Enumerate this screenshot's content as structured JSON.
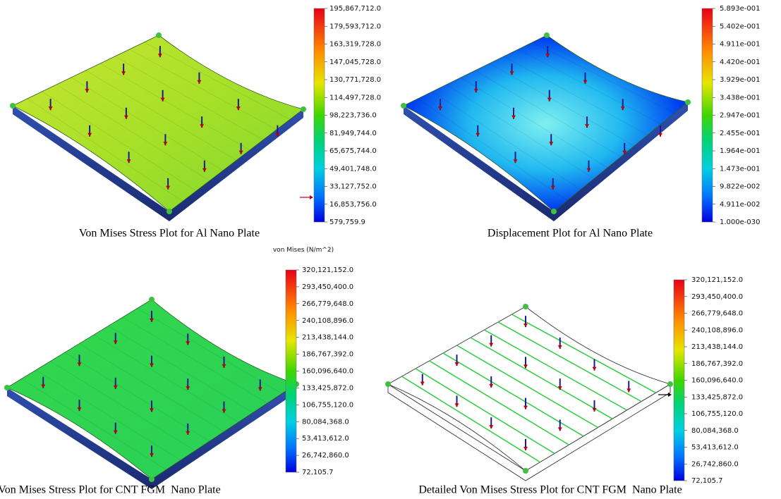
{
  "panels": [
    {
      "caption": "Von Mises Stress Plot for Al Nano Plate",
      "colorbar": [
        "195,867,712.0",
        "179,593,712.0",
        "163,319,728.0",
        "147,045,728.0",
        "130,771,728.0",
        "114,497,728.0",
        "98,223,736.0",
        "81,949,744.0",
        "65,675,744.0",
        "49,401,748.0",
        "33,127,752.0",
        "16,853,756.0",
        "579,759.9"
      ]
    },
    {
      "caption": "Displacement Plot for Al Nano Plate",
      "colorbar": [
        "5.893e-001",
        "5.402e-001",
        "4.911e-001",
        "4.420e-001",
        "3.929e-001",
        "3.438e-001",
        "2.947e-001",
        "2.455e-001",
        "1.964e-001",
        "1.473e-001",
        "9.822e-002",
        "4.911e-002",
        "1.000e-030"
      ]
    },
    {
      "caption": "Von Mises Stress Plot for CNT FGM  Nano Plate",
      "unit": "von Mises (N/m^2)",
      "colorbar": [
        "320,121,152.0",
        "293,450,400.0",
        "266,779,648.0",
        "240,108,896.0",
        "213,438,144.0",
        "186,767,392.0",
        "160,096,640.0",
        "133,425,872.0",
        "106,755,120.0",
        "80,084,368.0",
        "53,413,612.0",
        "26,742,860.0",
        "72,105.7"
      ]
    },
    {
      "caption": "Detailed Von Mises Stress Plot for CNT FGM  Nano Plate",
      "colorbar": [
        "320,121,152.0",
        "293,450,400.0",
        "266,779,648.0",
        "240,108,896.0",
        "213,438,144.0",
        "186,767,392.0",
        "160,096,640.0",
        "133,425,872.0",
        "106,755,120.0",
        "80,084,368.0",
        "53,413,612.0",
        "26,742,860.0",
        "72,105.7"
      ]
    }
  ]
}
